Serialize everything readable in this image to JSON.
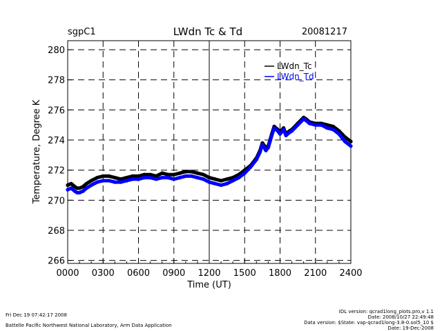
{
  "chart_data": {
    "type": "line",
    "site": "sgpC1",
    "title": "LWdn Tc & Td",
    "date": "20081217",
    "xlabel": "Time (UT)",
    "ylabel": "Temperature, Degree K",
    "xlim": [
      0,
      2400
    ],
    "ylim": [
      265.8,
      280.6
    ],
    "x_ticks": [
      0,
      300,
      600,
      900,
      1200,
      1500,
      1800,
      2100,
      2400
    ],
    "x_tick_labels": [
      "0000",
      "0300",
      "0600",
      "0900",
      "1200",
      "1500",
      "1800",
      "2100",
      "2400"
    ],
    "y_ticks": [
      266,
      268,
      270,
      272,
      274,
      276,
      278,
      280
    ],
    "y_tick_labels": [
      "266",
      "268",
      "270",
      "272",
      "274",
      "276",
      "278",
      "280"
    ],
    "grid": true,
    "legend_position": "top-right",
    "series": [
      {
        "name": "LWdn_Tc",
        "color": "#000000",
        "x": [
          0,
          30,
          60,
          80,
          100,
          130,
          160,
          200,
          250,
          300,
          350,
          400,
          450,
          500,
          550,
          600,
          650,
          700,
          750,
          800,
          850,
          900,
          950,
          1000,
          1050,
          1100,
          1150,
          1200,
          1250,
          1300,
          1350,
          1400,
          1450,
          1500,
          1550,
          1600,
          1630,
          1650,
          1680,
          1700,
          1730,
          1750,
          1780,
          1800,
          1830,
          1850,
          1880,
          1900,
          1950,
          2000,
          2020,
          2050,
          2100,
          2150,
          2200,
          2250,
          2300,
          2350,
          2400
        ],
        "y": [
          271.0,
          271.1,
          270.9,
          270.8,
          270.8,
          270.9,
          271.1,
          271.3,
          271.5,
          271.6,
          271.6,
          271.5,
          271.4,
          271.5,
          271.6,
          271.6,
          271.7,
          271.7,
          271.6,
          271.8,
          271.7,
          271.7,
          271.8,
          271.9,
          271.9,
          271.8,
          271.7,
          271.5,
          271.4,
          271.3,
          271.4,
          271.5,
          271.7,
          272.0,
          272.3,
          272.8,
          273.3,
          273.8,
          273.5,
          273.6,
          274.4,
          274.9,
          274.7,
          274.5,
          274.8,
          274.4,
          274.6,
          274.7,
          275.1,
          275.5,
          275.4,
          275.2,
          275.1,
          275.1,
          275.0,
          274.9,
          274.6,
          274.2,
          273.9
        ]
      },
      {
        "name": "LWdn_Td",
        "color": "#0000ff",
        "x": [
          0,
          30,
          60,
          80,
          100,
          130,
          160,
          200,
          250,
          300,
          350,
          400,
          450,
          500,
          550,
          600,
          650,
          700,
          750,
          800,
          850,
          900,
          950,
          1000,
          1050,
          1100,
          1150,
          1200,
          1250,
          1300,
          1350,
          1400,
          1450,
          1500,
          1550,
          1600,
          1630,
          1650,
          1680,
          1700,
          1730,
          1750,
          1780,
          1800,
          1830,
          1850,
          1880,
          1900,
          1950,
          2000,
          2020,
          2050,
          2100,
          2150,
          2200,
          2250,
          2300,
          2350,
          2400
        ],
        "y": [
          270.7,
          270.8,
          270.6,
          270.5,
          270.5,
          270.6,
          270.8,
          271.0,
          271.2,
          271.3,
          271.3,
          271.2,
          271.2,
          271.3,
          271.4,
          271.4,
          271.5,
          271.5,
          271.4,
          271.5,
          271.5,
          271.4,
          271.5,
          271.6,
          271.6,
          271.5,
          271.4,
          271.2,
          271.1,
          271.0,
          271.1,
          271.3,
          271.5,
          271.8,
          272.2,
          272.7,
          273.2,
          273.7,
          273.3,
          273.5,
          274.3,
          274.8,
          274.6,
          274.4,
          274.7,
          274.3,
          274.5,
          274.6,
          275.0,
          275.4,
          275.3,
          275.1,
          275.0,
          275.0,
          274.8,
          274.7,
          274.4,
          273.9,
          273.6
        ]
      }
    ],
    "legend": [
      {
        "label": "LWdn_Tc",
        "color": "#000000"
      },
      {
        "label": "LWdn_Td",
        "color": "#0000ff"
      }
    ]
  },
  "footer": {
    "generated": "Fri Dec 19 07:42:17 2008",
    "organization": "Battelle Pacific Northwest National Laboratory, Arm Data Application",
    "idl_version": "IDL version: qcrad1long_plots.pro,v 1.1",
    "idl_date": "Date: 2008/10/27 22:49:48",
    "data_version": "Data version: $State: vap-qcrad1long-3.8-0.sol5_10 $",
    "data_date": "Date: 19-Dec-2008"
  }
}
